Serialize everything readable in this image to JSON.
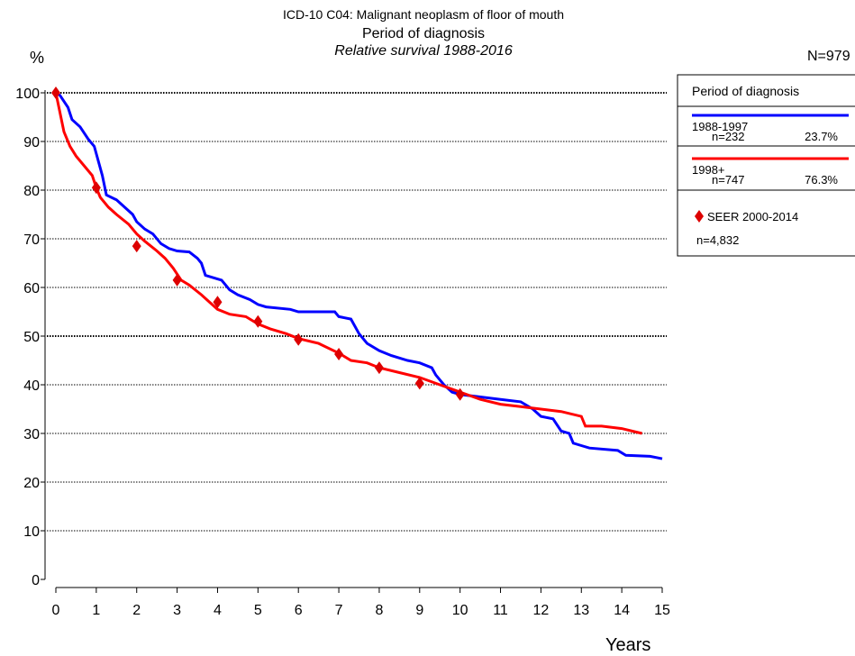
{
  "chart_data": {
    "type": "line",
    "title": "ICD-10 C04: Malignant neoplasm of floor of mouth",
    "subtitle": "Period of diagnosis",
    "subtitle2": "Relative survival 1988-2016",
    "y_label": "%",
    "x_label": "Years",
    "total": "N=979",
    "legend_title": "Period of diagnosis",
    "xlim": [
      0,
      15
    ],
    "xticks": [
      0,
      1,
      2,
      3,
      4,
      5,
      6,
      7,
      8,
      9,
      10,
      11,
      12,
      13,
      14,
      15
    ],
    "ylim": [
      0,
      100
    ],
    "yticks": [
      0,
      10,
      20,
      30,
      40,
      50,
      60,
      70,
      80,
      90,
      100
    ],
    "grid": true,
    "series": [
      {
        "name": "1988-1997",
        "n": "n=232",
        "share": "23.7%",
        "color": "#0000ff",
        "x": [
          0,
          0.1,
          0.3,
          0.4,
          0.6,
          0.8,
          0.95,
          1.05,
          1.15,
          1.25,
          1.5,
          1.7,
          1.9,
          2.0,
          2.2,
          2.4,
          2.6,
          2.8,
          3.0,
          3.3,
          3.5,
          3.6,
          3.7,
          4.1,
          4.3,
          4.5,
          4.8,
          5.0,
          5.2,
          5.8,
          6.0,
          6.9,
          7.0,
          7.3,
          7.5,
          7.7,
          8.0,
          8.3,
          8.7,
          9.0,
          9.3,
          9.4,
          9.6,
          9.8,
          10.0,
          10.5,
          11.0,
          11.5,
          11.8,
          12.0,
          12.3,
          12.5,
          12.7,
          12.8,
          13.0,
          13.2,
          13.9,
          14.1,
          14.7,
          15.0
        ],
        "values": [
          100,
          99.5,
          97,
          94.5,
          93,
          90.5,
          89,
          86,
          83,
          79,
          78,
          76.5,
          75,
          73.5,
          72,
          71,
          69,
          68,
          67.5,
          67.3,
          66,
          65,
          62.5,
          61.5,
          59.5,
          58.5,
          57.5,
          56.5,
          56,
          55.5,
          55,
          55,
          54,
          53.5,
          50.5,
          48.5,
          47,
          46,
          45,
          44.5,
          43.5,
          42,
          40,
          38.5,
          38,
          37.5,
          37,
          36.5,
          35,
          33.5,
          33,
          30.5,
          30,
          28,
          27.5,
          27,
          26.5,
          25.5,
          25.3,
          24.8
        ]
      },
      {
        "name": "1998+",
        "n": "n=747",
        "share": "76.3%",
        "color": "#ff0000",
        "x": [
          0,
          0.1,
          0.2,
          0.35,
          0.5,
          0.7,
          0.9,
          1.0,
          1.1,
          1.3,
          1.5,
          1.8,
          2.0,
          2.2,
          2.5,
          2.7,
          2.9,
          3.1,
          3.3,
          3.6,
          3.8,
          4.0,
          4.3,
          4.7,
          5.0,
          5.3,
          5.7,
          6.0,
          6.5,
          7.0,
          7.3,
          7.7,
          8.0,
          8.5,
          9.0,
          9.5,
          10.0,
          10.5,
          11.0,
          11.5,
          12.0,
          12.5,
          13.0,
          13.1,
          13.5,
          14.0,
          14.5
        ],
        "values": [
          100,
          96,
          92,
          89,
          87,
          85,
          83,
          80.5,
          78.5,
          76.5,
          75,
          73,
          71,
          69.5,
          67.5,
          66,
          64,
          61.5,
          60.5,
          58.5,
          57,
          55.5,
          54.5,
          54,
          52.5,
          51.5,
          50.5,
          49.5,
          48.5,
          46.5,
          45,
          44.5,
          43.5,
          42.5,
          41.5,
          40,
          38.5,
          37,
          36,
          35.5,
          35,
          34.5,
          33.5,
          31.5,
          31.5,
          31,
          30
        ]
      },
      {
        "name": "SEER 2000-2014",
        "n": "n=4,832",
        "color": "#dd0000",
        "marker": "diamond",
        "x": [
          0,
          1,
          2,
          3,
          4,
          5,
          6,
          7,
          8,
          9,
          10
        ],
        "values": [
          100,
          80.5,
          68.5,
          61.5,
          57,
          53,
          49.3,
          46.3,
          43.5,
          40.3,
          38
        ]
      }
    ]
  }
}
